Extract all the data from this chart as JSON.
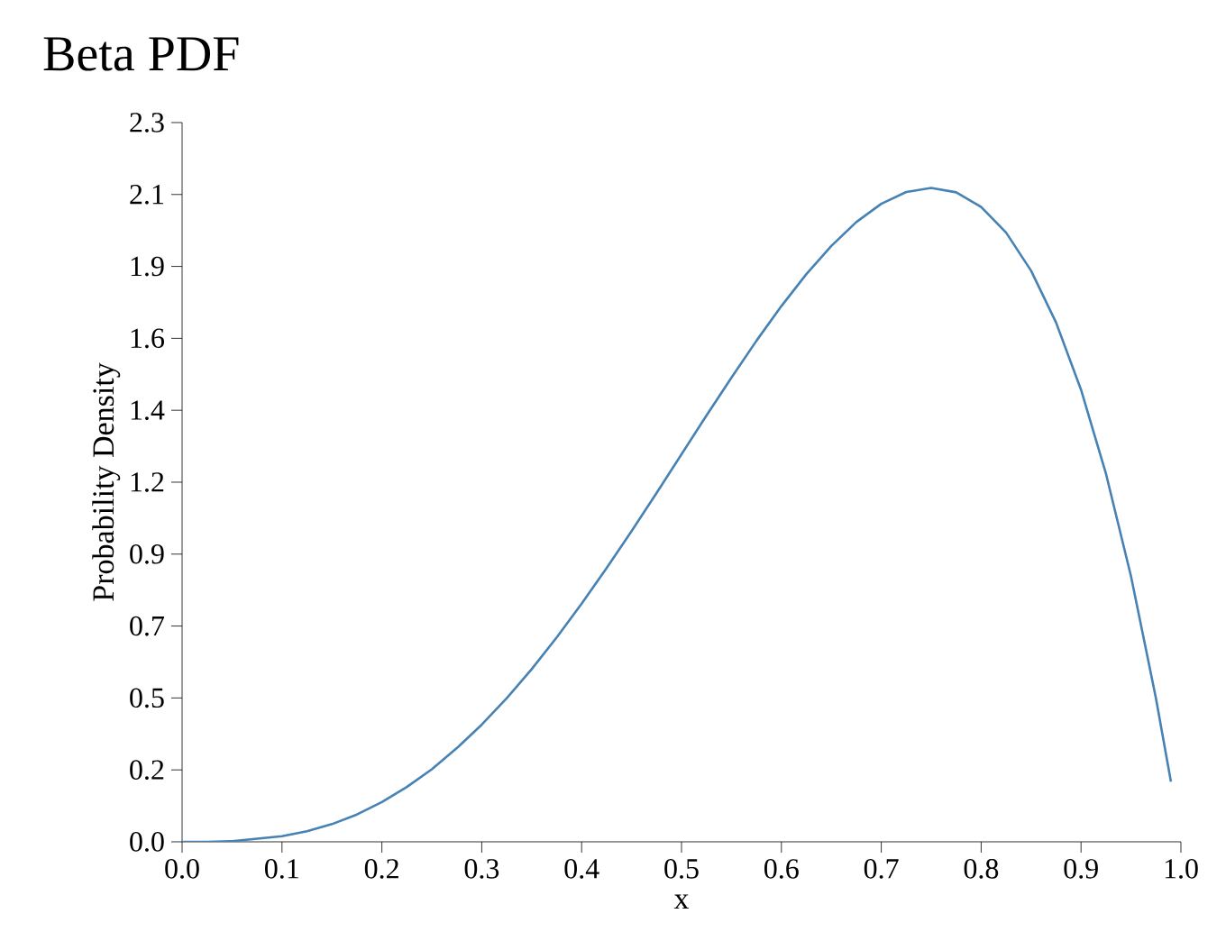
{
  "chart_data": {
    "type": "line",
    "title": "Beta PDF",
    "xlabel": "x",
    "ylabel": "Probability Density",
    "x": [
      0,
      0.025,
      0.05,
      0.1,
      0.125,
      0.15,
      0.175,
      0.2,
      0.225,
      0.25,
      0.275,
      0.3,
      0.325,
      0.35,
      0.375,
      0.4,
      0.425,
      0.45,
      0.475,
      0.5,
      0.525,
      0.55,
      0.575,
      0.6,
      0.625,
      0.65,
      0.675,
      0.7,
      0.725,
      0.75,
      0.775,
      0.8,
      0.825,
      0.85,
      0.875,
      0.9,
      0.925,
      0.95,
      0.975,
      0.99
    ],
    "values": [
      0,
      0,
      0.002,
      0.018,
      0.034,
      0.057,
      0.088,
      0.128,
      0.177,
      0.234,
      0.302,
      0.378,
      0.463,
      0.557,
      0.659,
      0.768,
      0.883,
      1.002,
      1.125,
      1.25,
      1.375,
      1.497,
      1.616,
      1.728,
      1.831,
      1.922,
      1.999,
      2.058,
      2.096,
      2.109,
      2.095,
      2.048,
      1.965,
      1.842,
      1.675,
      1.458,
      1.187,
      0.857,
      0.463,
      0.194
    ],
    "color": "#4682b4",
    "xlim": [
      0,
      1
    ],
    "ylim": [
      0,
      2.32
    ],
    "xticks": [
      {
        "value": 0,
        "label": "0.0"
      },
      {
        "value": 0.1,
        "label": "0.1"
      },
      {
        "value": 0.2,
        "label": "0.2"
      },
      {
        "value": 0.3,
        "label": "0.3"
      },
      {
        "value": 0.4,
        "label": "0.4"
      },
      {
        "value": 0.5,
        "label": "0.5"
      },
      {
        "value": 0.6,
        "label": "0.6"
      },
      {
        "value": 0.7,
        "label": "0.7"
      },
      {
        "value": 0.8,
        "label": "0.8"
      },
      {
        "value": 0.9,
        "label": "0.9"
      },
      {
        "value": 1,
        "label": "1.0"
      }
    ],
    "yticks": [
      {
        "value": 0,
        "label": "0.0"
      },
      {
        "value": 0.232,
        "label": "0.2"
      },
      {
        "value": 0.464,
        "label": "0.5"
      },
      {
        "value": 0.696,
        "label": "0.7"
      },
      {
        "value": 0.928,
        "label": "0.9"
      },
      {
        "value": 1.16,
        "label": "1.2"
      },
      {
        "value": 1.392,
        "label": "1.4"
      },
      {
        "value": 1.624,
        "label": "1.6"
      },
      {
        "value": 1.856,
        "label": "1.9"
      },
      {
        "value": 2.088,
        "label": "2.1"
      },
      {
        "value": 2.32,
        "label": "2.3"
      }
    ]
  }
}
